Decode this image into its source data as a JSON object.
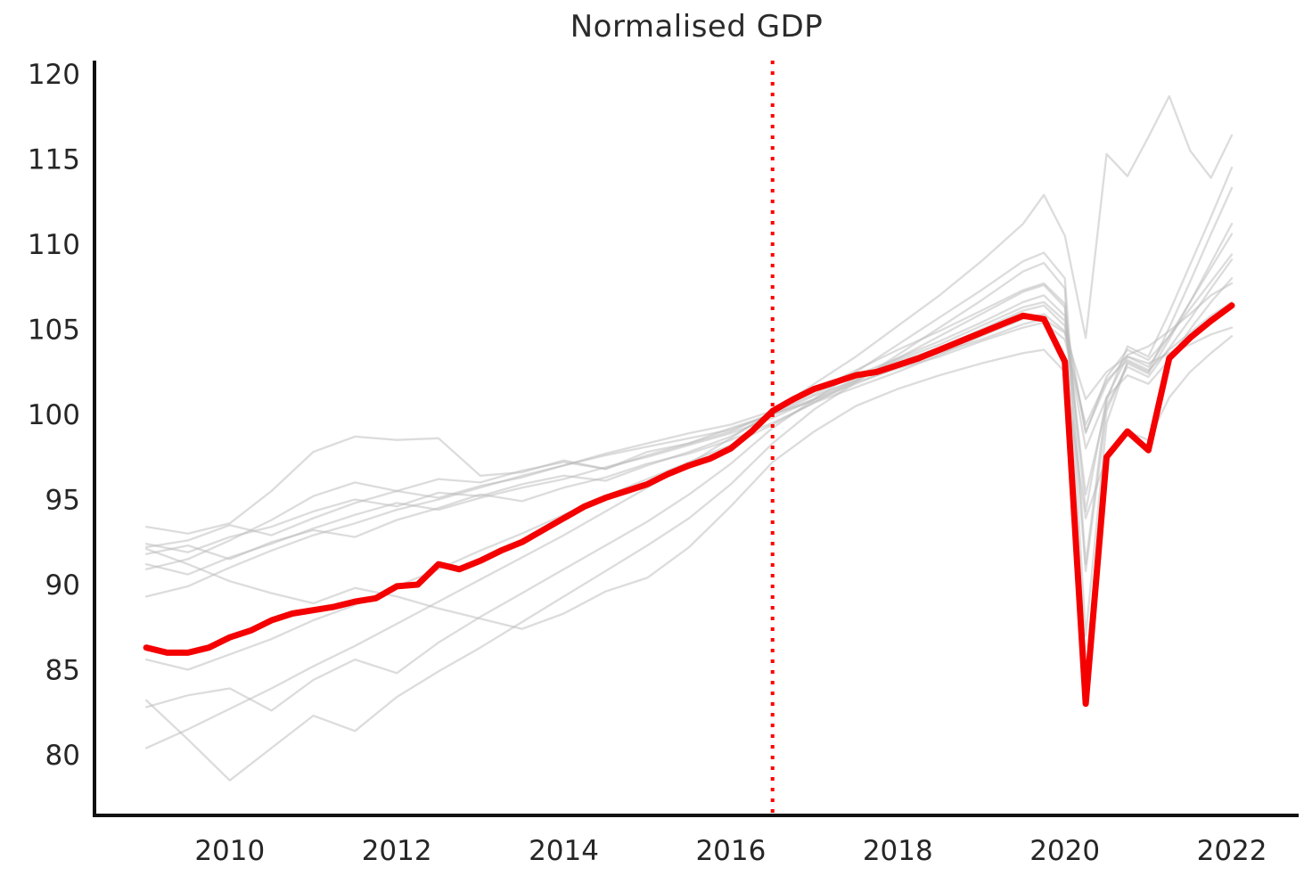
{
  "page": {
    "background": "#ffffff"
  },
  "chart_data": {
    "type": "line",
    "title": "Normalised GDP",
    "xlabel": "",
    "ylabel": "",
    "grid": false,
    "legend": "none",
    "x_ticks": [
      "2010",
      "2012",
      "2014",
      "2016",
      "2018",
      "2020",
      "2022"
    ],
    "x_tick_years": [
      2010,
      2012,
      2014,
      2016,
      2018,
      2020,
      2022
    ],
    "y_ticks": [
      "80",
      "85",
      "90",
      "95",
      "100",
      "105",
      "110",
      "115",
      "120"
    ],
    "y_tick_values": [
      80,
      85,
      90,
      95,
      100,
      105,
      110,
      115,
      120
    ],
    "xlim": [
      2008.38,
      2022.8
    ],
    "ylim": [
      76.44,
      120.79
    ],
    "styling": {
      "highlight_color": "#f40000",
      "background_line_color": "#bababa",
      "background_line_opacity": 0.5,
      "vline_color": "#ff0000",
      "axis_color": "#111111",
      "text_color": "#262626"
    },
    "annotation_vline": {
      "x": 2016.5,
      "style": "dotted",
      "color": "#ff0000"
    },
    "highlight_series": {
      "name": "highlighted-country-gdp-index",
      "x_start": 2009.0,
      "x_step": 0.25,
      "values": [
        86.3,
        86.0,
        86.0,
        86.3,
        86.9,
        87.3,
        87.9,
        88.3,
        88.5,
        88.7,
        89.0,
        89.2,
        89.9,
        90.0,
        91.2,
        90.9,
        91.4,
        92.0,
        92.5,
        93.2,
        93.9,
        94.6,
        95.1,
        95.5,
        95.9,
        96.5,
        97.0,
        97.4,
        98.0,
        99.0,
        100.2,
        100.9,
        101.5,
        101.9,
        102.3,
        102.5,
        102.9,
        103.3,
        103.8,
        104.3,
        104.8,
        105.3,
        105.8,
        105.6,
        103.1,
        83.0,
        97.5,
        99.0,
        97.9,
        103.3,
        104.5,
        105.5,
        106.4
      ]
    },
    "background_series": {
      "x": [
        2009,
        2009.5,
        2010,
        2010.5,
        2011,
        2011.5,
        2012,
        2012.5,
        2013,
        2013.5,
        2014,
        2014.5,
        2015,
        2015.5,
        2016,
        2016.5,
        2017,
        2017.5,
        2018,
        2018.5,
        2019,
        2019.5,
        2019.75,
        2020,
        2020.25,
        2020.5,
        2020.75,
        2021,
        2021.25,
        2021.5,
        2021.75,
        2022
      ],
      "series": [
        {
          "name": "country-01",
          "values": [
            93.4,
            93.0,
            93.6,
            95.5,
            97.8,
            98.7,
            98.5,
            98.6,
            96.4,
            96.6,
            97.3,
            96.8,
            97.8,
            98.3,
            99.2,
            100.0,
            100.8,
            101.8,
            102.8,
            103.6,
            104.4,
            105.3,
            105.6,
            104.8,
            100.9,
            102.5,
            103.4,
            103.0,
            103.6,
            104.1,
            104.7,
            105.1
          ]
        },
        {
          "name": "country-02",
          "values": [
            92.4,
            91.9,
            92.8,
            93.4,
            94.3,
            95.0,
            94.6,
            95.4,
            95.2,
            95.9,
            96.4,
            96.1,
            97.0,
            97.8,
            98.7,
            100.0,
            100.9,
            101.9,
            102.7,
            103.4,
            104.3,
            105.1,
            105.4,
            104.4,
            99.4,
            102.0,
            103.2,
            102.6,
            103.8,
            104.8,
            105.8,
            106.6
          ]
        },
        {
          "name": "country-03",
          "values": [
            92.2,
            92.6,
            93.5,
            92.9,
            93.9,
            94.8,
            95.5,
            95.1,
            95.8,
            96.3,
            97.0,
            97.6,
            98.1,
            98.6,
            99.1,
            100.0,
            101.1,
            102.0,
            103.1,
            103.9,
            105.0,
            106.1,
            106.4,
            105.2,
            99.0,
            101.8,
            103.5,
            104.0,
            104.9,
            105.9,
            107.0,
            107.7
          ]
        },
        {
          "name": "country-04",
          "values": [
            92.1,
            91.2,
            90.2,
            89.5,
            88.9,
            89.8,
            89.3,
            88.6,
            88.0,
            87.4,
            88.3,
            89.6,
            90.4,
            92.2,
            94.6,
            97.2,
            99.0,
            100.5,
            101.5,
            102.3,
            103.0,
            103.6,
            103.8,
            102.5,
            93.9,
            97.5,
            99.0,
            98.5,
            101.0,
            102.5,
            103.6,
            104.6
          ]
        },
        {
          "name": "country-05",
          "values": [
            91.8,
            92.3,
            91.5,
            92.5,
            93.2,
            92.8,
            93.8,
            94.5,
            95.3,
            94.9,
            95.7,
            96.3,
            97.1,
            97.7,
            98.5,
            99.5,
            100.7,
            101.6,
            102.5,
            103.5,
            104.6,
            105.6,
            105.9,
            104.9,
            98.0,
            101.0,
            102.3,
            101.8,
            103.2,
            105.0,
            106.6,
            108.0
          ]
        },
        {
          "name": "country-06",
          "values": [
            91.2,
            90.6,
            91.6,
            92.4,
            93.3,
            94.1,
            94.8,
            94.4,
            95.1,
            95.7,
            96.2,
            96.9,
            97.5,
            98.2,
            98.9,
            99.8,
            100.9,
            102.1,
            103.2,
            104.1,
            105.2,
            106.3,
            106.6,
            105.5,
            95.3,
            100.5,
            102.8,
            102.2,
            103.9,
            105.6,
            107.4,
            109.1
          ]
        },
        {
          "name": "country-07",
          "values": [
            90.9,
            91.5,
            92.6,
            93.8,
            95.2,
            96.0,
            95.5,
            96.2,
            96.0,
            96.7,
            97.2,
            96.8,
            97.6,
            98.3,
            99.0,
            100.1,
            101.2,
            102.3,
            103.3,
            104.3,
            105.4,
            106.6,
            107.0,
            105.8,
            98.9,
            102.2,
            103.8,
            103.2,
            104.6,
            106.2,
            107.8,
            109.4
          ]
        },
        {
          "name": "country-08",
          "values": [
            89.3,
            89.9,
            91.0,
            92.0,
            92.9,
            93.6,
            94.4,
            95.0,
            95.7,
            96.4,
            97.0,
            97.7,
            98.3,
            98.9,
            99.4,
            100.2,
            101.4,
            102.6,
            103.8,
            104.9,
            106.1,
            107.3,
            107.7,
            106.5,
            94.3,
            101.0,
            103.4,
            102.8,
            104.6,
            106.6,
            108.6,
            110.6
          ]
        },
        {
          "name": "country-09",
          "values": [
            85.6,
            85.0,
            85.9,
            86.8,
            87.9,
            88.8,
            89.9,
            90.9,
            92.0,
            93.0,
            94.1,
            95.2,
            96.2,
            97.2,
            98.2,
            99.4,
            100.7,
            102.0,
            103.3,
            104.6,
            105.9,
            107.2,
            107.6,
            106.3,
            90.8,
            100.2,
            103.0,
            102.4,
            104.4,
            106.6,
            108.9,
            111.2
          ]
        },
        {
          "name": "country-10",
          "values": [
            83.2,
            80.9,
            78.5,
            80.4,
            82.3,
            81.4,
            83.4,
            84.9,
            86.3,
            87.8,
            89.3,
            90.8,
            92.3,
            93.9,
            95.9,
            98.3,
            100.3,
            101.9,
            103.5,
            105.1,
            106.7,
            108.4,
            108.9,
            107.4,
            87.0,
            99.5,
            103.1,
            102.5,
            105.1,
            107.8,
            110.6,
            113.3
          ]
        },
        {
          "name": "country-11",
          "values": [
            82.8,
            83.5,
            83.9,
            82.6,
            84.4,
            85.6,
            84.8,
            86.6,
            88.1,
            89.5,
            90.9,
            92.3,
            93.7,
            95.3,
            97.1,
            99.2,
            100.9,
            102.5,
            104.1,
            105.7,
            107.3,
            109.0,
            109.5,
            108.0,
            91.2,
            100.8,
            104.0,
            103.4,
            106.0,
            108.8,
            111.6,
            114.5
          ]
        },
        {
          "name": "country-12",
          "values": [
            80.4,
            81.5,
            82.7,
            83.9,
            85.2,
            86.4,
            87.7,
            89.0,
            90.3,
            91.6,
            92.9,
            94.3,
            95.7,
            97.1,
            98.6,
            100.2,
            101.8,
            103.4,
            105.2,
            107.0,
            109.0,
            111.2,
            112.9,
            110.5,
            104.5,
            115.3,
            114.0,
            116.3,
            118.7,
            115.5,
            113.9,
            116.4
          ]
        }
      ]
    }
  }
}
